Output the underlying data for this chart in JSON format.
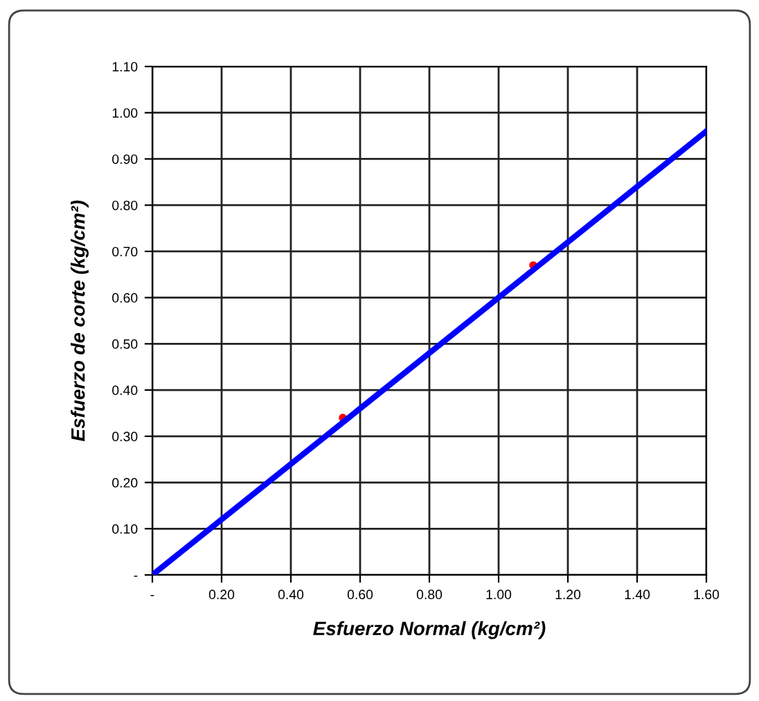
{
  "chart_data": {
    "type": "scatter",
    "xlabel": "Esfuerzo Normal (kg/cm²)",
    "ylabel": "Esfuerzo de corte (kg/cm²)",
    "series": [
      {
        "color": "#ff0000",
        "x": [
          0.55,
          1.1
        ],
        "values": [
          0.34,
          0.67
        ],
        "marker": "circle"
      },
      {
        "type": "line",
        "color": "#0000ff",
        "x": [
          0,
          1.6
        ],
        "values": [
          0,
          0.96
        ],
        "marker": "none",
        "line_style": "solid"
      }
    ],
    "xlim": [
      0,
      1.6
    ],
    "ylim": [
      0,
      1.1
    ],
    "xticks": [
      {
        "value": 0,
        "label": "-"
      },
      {
        "value": 0.2,
        "label": "0.20"
      },
      {
        "value": 0.4,
        "label": "0.40"
      },
      {
        "value": 0.6,
        "label": "0.60"
      },
      {
        "value": 0.8,
        "label": "0.80"
      },
      {
        "value": 1.0,
        "label": "1.00"
      },
      {
        "value": 1.2,
        "label": "1.20"
      },
      {
        "value": 1.4,
        "label": "1.40"
      },
      {
        "value": 1.6,
        "label": "1.60"
      }
    ],
    "yticks": [
      {
        "value": 0,
        "label": "-"
      },
      {
        "value": 0.1,
        "label": "0.10"
      },
      {
        "value": 0.2,
        "label": "0.20"
      },
      {
        "value": 0.3,
        "label": "0.30"
      },
      {
        "value": 0.4,
        "label": "0.40"
      },
      {
        "value": 0.5,
        "label": "0.50"
      },
      {
        "value": 0.6,
        "label": "0.60"
      },
      {
        "value": 0.7,
        "label": "0.70"
      },
      {
        "value": 0.8,
        "label": "0.80"
      },
      {
        "value": 0.9,
        "label": "0.90"
      },
      {
        "value": 1.0,
        "label": "1.00"
      },
      {
        "value": 1.1,
        "label": "1.10"
      }
    ],
    "grid": true
  }
}
